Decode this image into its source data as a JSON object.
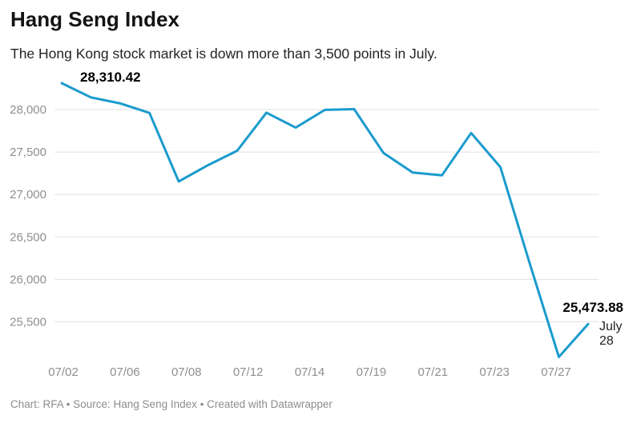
{
  "header": {
    "title": "Hang Seng Index",
    "subtitle": "The Hong Kong stock market is down more than 3,500 points in July."
  },
  "chart_data": {
    "type": "line",
    "title": "Hang Seng Index",
    "subtitle": "The Hong Kong stock market is down more than 3,500 points in July.",
    "series": [
      {
        "name": "Hang Seng Index",
        "x": [
          "07/02",
          "07/05",
          "07/06",
          "07/07",
          "07/08",
          "07/09",
          "07/12",
          "07/13",
          "07/14",
          "07/15",
          "07/16",
          "07/19",
          "07/20",
          "07/21",
          "07/22",
          "07/23",
          "07/26",
          "07/27",
          "07/28"
        ],
        "values": [
          28310.42,
          28143.5,
          28072.86,
          27960.62,
          27153.13,
          27344.54,
          27515.24,
          27963.41,
          27787.46,
          27996.27,
          28004.68,
          27489.78,
          27259.25,
          27224.58,
          27723.84,
          27321.98,
          26192.32,
          25086.43,
          25473.88
        ]
      }
    ],
    "x_tick_labels": [
      "07/02",
      "07/06",
      "07/08",
      "07/12",
      "07/14",
      "07/19",
      "07/21",
      "07/23",
      "07/27"
    ],
    "y_ticks": [
      {
        "value": 28000,
        "label": "28,000"
      },
      {
        "value": 27500,
        "label": "27,500"
      },
      {
        "value": 27000,
        "label": "27,000"
      },
      {
        "value": 26500,
        "label": "26,500"
      },
      {
        "value": 26000,
        "label": "26,000"
      },
      {
        "value": 25500,
        "label": "25,500"
      }
    ],
    "ylim": [
      25050,
      28400
    ],
    "grid": "horizontal",
    "legend": "none",
    "line_color": "#1a9bcd",
    "annotations": {
      "first_point_label": "28,310.42",
      "last_point_label": "25,473.88",
      "last_point_date_lines": [
        "July",
        "28"
      ]
    }
  },
  "colors": {
    "line": "#1a9bcd",
    "grid": "#e2e2e2",
    "axis_label": "#8f8f8f"
  },
  "footer": {
    "text": "Chart: RFA • Source: Hang Seng Index • Created with Datawrapper"
  }
}
